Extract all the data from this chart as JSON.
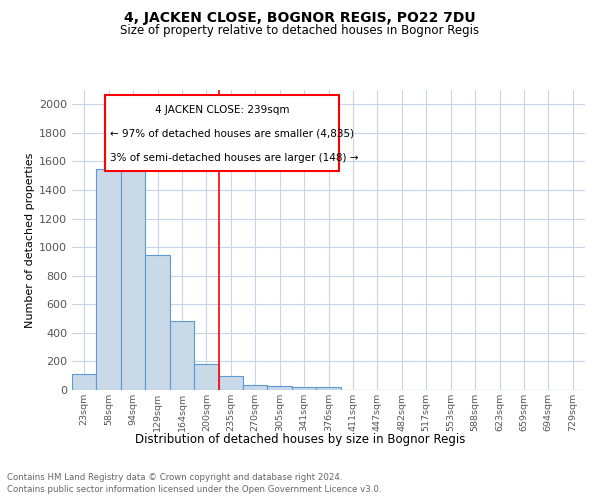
{
  "title1": "4, JACKEN CLOSE, BOGNOR REGIS, PO22 7DU",
  "title2": "Size of property relative to detached houses in Bognor Regis",
  "xlabel": "Distribution of detached houses by size in Bognor Regis",
  "ylabel": "Number of detached properties",
  "bin_labels": [
    "23sqm",
    "58sqm",
    "94sqm",
    "129sqm",
    "164sqm",
    "200sqm",
    "235sqm",
    "270sqm",
    "305sqm",
    "341sqm",
    "376sqm",
    "411sqm",
    "447sqm",
    "482sqm",
    "517sqm",
    "553sqm",
    "588sqm",
    "623sqm",
    "659sqm",
    "694sqm",
    "729sqm"
  ],
  "bar_heights": [
    110,
    1545,
    1580,
    945,
    485,
    183,
    97,
    38,
    27,
    18,
    18,
    0,
    0,
    0,
    0,
    0,
    0,
    0,
    0,
    0,
    0
  ],
  "bar_color": "#c9d9e8",
  "bar_edge_color": "#5b9bd5",
  "marker_label": "4 JACKEN CLOSE: 239sqm",
  "annotation_line1": "← 97% of detached houses are smaller (4,835)",
  "annotation_line2": "3% of semi-detached houses are larger (148) →",
  "red_line_bin": 6,
  "ylim": [
    0,
    2100
  ],
  "yticks": [
    0,
    200,
    400,
    600,
    800,
    1000,
    1200,
    1400,
    1600,
    1800,
    2000
  ],
  "footnote1": "Contains HM Land Registry data © Crown copyright and database right 2024.",
  "footnote2": "Contains public sector information licensed under the Open Government Licence v3.0.",
  "bg_color": "#ffffff",
  "grid_color": "#c8d4e8"
}
